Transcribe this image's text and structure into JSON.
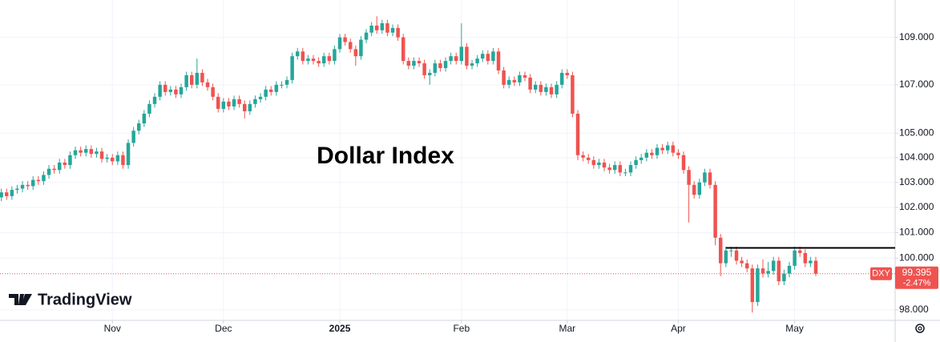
{
  "chart_data": {
    "type": "candlestick",
    "title": "Dollar Index",
    "brand": "TradingView",
    "candles": [
      [
        102.4,
        102.75,
        102.25,
        102.6
      ],
      [
        102.6,
        102.75,
        102.3,
        102.45
      ],
      [
        102.45,
        102.85,
        102.3,
        102.7
      ],
      [
        102.7,
        102.9,
        102.55,
        102.75
      ],
      [
        102.75,
        103.05,
        102.6,
        102.9
      ],
      [
        102.9,
        103.05,
        102.7,
        102.85
      ],
      [
        102.85,
        103.25,
        102.7,
        103.1
      ],
      [
        103.1,
        103.25,
        102.9,
        103.05
      ],
      [
        103.05,
        103.45,
        102.9,
        103.3
      ],
      [
        103.3,
        103.7,
        103.15,
        103.55
      ],
      [
        103.55,
        103.7,
        103.35,
        103.5
      ],
      [
        103.5,
        103.95,
        103.35,
        103.8
      ],
      [
        103.8,
        103.95,
        103.55,
        103.7
      ],
      [
        103.7,
        104.25,
        103.55,
        104.1
      ],
      [
        104.1,
        104.45,
        103.95,
        104.3
      ],
      [
        104.3,
        104.45,
        104.05,
        104.2
      ],
      [
        104.2,
        104.5,
        104.05,
        104.35
      ],
      [
        104.35,
        104.5,
        104.0,
        104.15
      ],
      [
        104.15,
        104.4,
        104.0,
        104.25
      ],
      [
        104.25,
        104.4,
        103.8,
        103.95
      ],
      [
        103.95,
        104.15,
        103.8,
        104.0
      ],
      [
        104.0,
        104.15,
        103.7,
        103.85
      ],
      [
        103.85,
        104.25,
        103.7,
        104.1
      ],
      [
        104.1,
        104.25,
        103.55,
        103.7
      ],
      [
        103.7,
        104.75,
        103.55,
        104.6
      ],
      [
        104.6,
        105.25,
        104.45,
        105.1
      ],
      [
        105.1,
        105.55,
        104.95,
        105.4
      ],
      [
        105.4,
        105.95,
        105.25,
        105.8
      ],
      [
        105.8,
        106.35,
        105.65,
        106.2
      ],
      [
        106.2,
        106.65,
        106.05,
        106.5
      ],
      [
        106.5,
        107.15,
        106.35,
        107.0
      ],
      [
        107.0,
        107.15,
        106.55,
        106.7
      ],
      [
        106.7,
        106.95,
        106.55,
        106.8
      ],
      [
        106.8,
        106.95,
        106.45,
        106.6
      ],
      [
        106.6,
        107.05,
        106.45,
        106.9
      ],
      [
        106.9,
        107.55,
        106.75,
        107.4
      ],
      [
        107.4,
        107.55,
        106.85,
        107.0
      ],
      [
        107.0,
        108.1,
        106.85,
        107.5
      ],
      [
        107.5,
        107.65,
        106.95,
        107.1
      ],
      [
        107.1,
        107.25,
        106.75,
        106.9
      ],
      [
        106.9,
        107.05,
        106.35,
        106.5
      ],
      [
        106.5,
        106.65,
        105.85,
        106.0
      ],
      [
        106.0,
        106.45,
        105.85,
        106.3
      ],
      [
        106.3,
        106.45,
        105.95,
        106.1
      ],
      [
        106.1,
        106.55,
        105.95,
        106.4
      ],
      [
        106.4,
        106.55,
        106.05,
        106.2
      ],
      [
        106.2,
        106.35,
        105.6,
        105.9
      ],
      [
        105.9,
        106.35,
        105.75,
        106.2
      ],
      [
        106.2,
        106.55,
        106.05,
        106.4
      ],
      [
        106.4,
        106.65,
        106.25,
        106.5
      ],
      [
        106.5,
        106.95,
        106.35,
        106.8
      ],
      [
        106.8,
        106.95,
        106.55,
        106.7
      ],
      [
        106.7,
        107.15,
        106.55,
        107.0
      ],
      [
        107.0,
        107.15,
        106.85,
        107.0
      ],
      [
        107.0,
        107.35,
        106.85,
        107.2
      ],
      [
        107.2,
        108.35,
        107.05,
        108.2
      ],
      [
        108.2,
        108.55,
        108.05,
        108.4
      ],
      [
        108.4,
        108.55,
        107.85,
        108.0
      ],
      [
        108.0,
        108.25,
        107.85,
        108.1
      ],
      [
        108.1,
        108.25,
        107.85,
        108.0
      ],
      [
        108.0,
        108.15,
        107.75,
        107.9
      ],
      [
        107.9,
        108.35,
        107.75,
        108.2
      ],
      [
        108.2,
        108.35,
        107.85,
        108.0
      ],
      [
        108.0,
        108.65,
        107.85,
        108.5
      ],
      [
        108.5,
        109.15,
        108.35,
        109.0
      ],
      [
        109.0,
        109.15,
        108.65,
        108.8
      ],
      [
        108.8,
        108.95,
        108.35,
        108.5
      ],
      [
        108.5,
        108.65,
        107.8,
        108.2
      ],
      [
        108.2,
        109.05,
        108.05,
        108.9
      ],
      [
        108.9,
        109.35,
        108.75,
        109.2
      ],
      [
        109.2,
        109.65,
        109.05,
        109.5
      ],
      [
        109.5,
        109.9,
        109.15,
        109.3
      ],
      [
        109.3,
        109.75,
        109.15,
        109.6
      ],
      [
        109.6,
        109.75,
        109.05,
        109.2
      ],
      [
        109.2,
        109.55,
        109.05,
        109.4
      ],
      [
        109.4,
        109.55,
        108.85,
        109.0
      ],
      [
        109.0,
        109.15,
        107.85,
        108.0
      ],
      [
        108.0,
        108.15,
        107.65,
        107.8
      ],
      [
        107.8,
        108.15,
        107.65,
        108.0
      ],
      [
        108.0,
        108.15,
        107.75,
        107.9
      ],
      [
        107.9,
        108.05,
        107.25,
        107.4
      ],
      [
        107.4,
        107.65,
        107.0,
        107.5
      ],
      [
        107.5,
        108.05,
        107.35,
        107.9
      ],
      [
        107.9,
        108.05,
        107.55,
        107.7
      ],
      [
        107.7,
        108.15,
        107.55,
        108.0
      ],
      [
        108.0,
        108.35,
        107.85,
        108.2
      ],
      [
        108.2,
        108.35,
        107.85,
        108.0
      ],
      [
        108.0,
        109.6,
        107.85,
        108.6
      ],
      [
        108.6,
        108.75,
        107.65,
        107.8
      ],
      [
        107.8,
        108.05,
        107.65,
        107.9
      ],
      [
        107.9,
        108.25,
        107.75,
        108.1
      ],
      [
        108.1,
        108.45,
        107.95,
        108.3
      ],
      [
        108.3,
        108.45,
        107.85,
        108.0
      ],
      [
        108.0,
        108.55,
        107.85,
        108.4
      ],
      [
        108.4,
        108.55,
        107.45,
        107.6
      ],
      [
        107.6,
        107.75,
        106.85,
        107.0
      ],
      [
        107.0,
        107.35,
        106.85,
        107.2
      ],
      [
        107.2,
        107.35,
        106.95,
        107.1
      ],
      [
        107.1,
        107.55,
        106.95,
        107.4
      ],
      [
        107.4,
        107.55,
        107.15,
        107.3
      ],
      [
        107.3,
        107.45,
        106.65,
        106.8
      ],
      [
        106.8,
        107.15,
        106.65,
        107.0
      ],
      [
        107.0,
        107.15,
        106.55,
        106.7
      ],
      [
        106.7,
        107.05,
        106.55,
        106.9
      ],
      [
        106.9,
        107.05,
        106.45,
        106.6
      ],
      [
        106.6,
        107.15,
        106.45,
        107.0
      ],
      [
        107.0,
        107.65,
        106.85,
        107.5
      ],
      [
        107.5,
        107.65,
        107.25,
        107.4
      ],
      [
        107.4,
        107.55,
        105.65,
        105.8
      ],
      [
        105.8,
        105.95,
        103.9,
        104.1
      ],
      [
        104.1,
        104.25,
        103.85,
        104.0
      ],
      [
        104.0,
        104.15,
        103.75,
        103.9
      ],
      [
        103.9,
        104.05,
        103.55,
        103.7
      ],
      [
        103.7,
        103.95,
        103.55,
        103.8
      ],
      [
        103.8,
        103.95,
        103.45,
        103.6
      ],
      [
        103.6,
        103.75,
        103.35,
        103.5
      ],
      [
        103.5,
        103.85,
        103.35,
        103.7
      ],
      [
        103.7,
        103.85,
        103.25,
        103.4
      ],
      [
        103.4,
        103.55,
        103.25,
        103.4
      ],
      [
        103.4,
        103.85,
        103.25,
        103.7
      ],
      [
        103.7,
        104.05,
        103.55,
        103.9
      ],
      [
        103.9,
        104.15,
        103.75,
        104.0
      ],
      [
        104.0,
        104.35,
        103.85,
        104.2
      ],
      [
        104.2,
        104.35,
        103.95,
        104.1
      ],
      [
        104.1,
        104.55,
        103.95,
        104.4
      ],
      [
        104.4,
        104.55,
        104.15,
        104.3
      ],
      [
        104.3,
        104.65,
        104.15,
        104.5
      ],
      [
        104.5,
        104.65,
        104.05,
        104.2
      ],
      [
        104.2,
        104.35,
        103.95,
        104.1
      ],
      [
        104.1,
        104.25,
        103.35,
        103.5
      ],
      [
        103.5,
        103.65,
        101.4,
        102.9
      ],
      [
        102.9,
        103.05,
        102.35,
        102.5
      ],
      [
        102.5,
        103.15,
        102.35,
        103.0
      ],
      [
        103.0,
        103.55,
        102.85,
        103.4
      ],
      [
        103.4,
        103.55,
        102.75,
        102.9
      ],
      [
        102.9,
        103.05,
        100.5,
        100.8
      ],
      [
        100.8,
        100.95,
        99.3,
        99.8
      ],
      [
        99.8,
        100.45,
        99.65,
        100.3
      ],
      [
        100.3,
        100.45,
        100.05,
        100.3
      ],
      [
        100.3,
        100.45,
        99.75,
        99.9
      ],
      [
        99.9,
        100.05,
        99.65,
        99.8
      ],
      [
        99.8,
        99.95,
        99.45,
        99.6
      ],
      [
        99.6,
        99.75,
        97.9,
        98.3
      ],
      [
        98.3,
        99.75,
        98.15,
        99.6
      ],
      [
        99.6,
        99.95,
        99.25,
        99.4
      ],
      [
        99.4,
        99.85,
        99.25,
        99.5
      ],
      [
        99.5,
        100.05,
        99.35,
        99.9
      ],
      [
        99.9,
        100.05,
        98.95,
        99.1
      ],
      [
        99.1,
        99.55,
        98.95,
        99.4
      ],
      [
        99.4,
        99.85,
        99.25,
        99.7
      ],
      [
        99.7,
        100.45,
        99.55,
        100.3
      ],
      [
        100.3,
        100.45,
        100.05,
        100.2
      ],
      [
        100.2,
        100.35,
        99.65,
        99.8
      ],
      [
        99.8,
        100.05,
        99.65,
        99.9
      ],
      [
        99.9,
        100.05,
        99.3,
        99.395
      ]
    ],
    "up_color": "#26a69a",
    "down_color": "#ef5350",
    "xlim": [
      -0.25,
      169
    ],
    "xticks": [
      {
        "value": 21,
        "label": "Nov"
      },
      {
        "value": 42,
        "label": "Dec"
      },
      {
        "value": 64,
        "label": "2025"
      },
      {
        "value": 87,
        "label": "Feb"
      },
      {
        "value": 107,
        "label": "Mar"
      },
      {
        "value": 128,
        "label": "Apr"
      },
      {
        "value": 150,
        "label": "May"
      }
    ],
    "ylim": [
      97.6,
      110.6
    ],
    "log_scale": true,
    "yticks": [
      {
        "value": 98,
        "label": "98.000"
      },
      {
        "value": 100,
        "label": "100.000"
      },
      {
        "value": 101,
        "label": "101.000"
      },
      {
        "value": 102,
        "label": "102.000"
      },
      {
        "value": 103,
        "label": "103.000"
      },
      {
        "value": 104,
        "label": "104.000"
      },
      {
        "value": 105,
        "label": "105.000"
      },
      {
        "value": 107,
        "label": "107.000"
      },
      {
        "value": 109,
        "label": "109.000"
      }
    ],
    "grid": true,
    "horizontal_line": {
      "value": 100.4,
      "from": 137
    },
    "last": {
      "symbol": "DXY",
      "value": 99.395,
      "change": -2.47,
      "change_label": "-2.47%"
    }
  }
}
